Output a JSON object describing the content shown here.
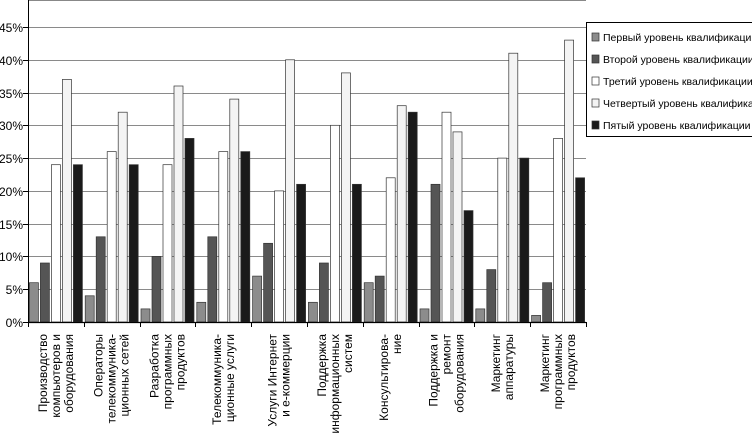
{
  "chart_data": {
    "type": "bar",
    "title": "",
    "xlabel": "",
    "ylabel": "",
    "ylim": [
      0,
      45
    ],
    "yticks": [
      "0%",
      "5%",
      "10%",
      "15%",
      "20%",
      "25%",
      "30%",
      "35%",
      "40%",
      "45%"
    ],
    "grid": true,
    "legend_position": "top-right",
    "categories": [
      "Производство компьютеров и оборудования",
      "Операторы телекоммуника-ционных сетей",
      "Разработка программных продуктов",
      "Телекоммуника-ционные услуги",
      "Услуги Интернет и е-коммерции",
      "Поддержка информационных систем",
      "Консультирова-ние",
      "Поддержка и ремонт оборудования",
      "Маркетинг аппаратуры",
      "Маркетинг программных продуктов"
    ],
    "series": [
      {
        "name": "Первый уровень квалификации",
        "color": "#8c8c8c",
        "values": [
          6,
          4,
          2,
          3,
          7,
          3,
          6,
          2,
          2,
          1
        ]
      },
      {
        "name": "Второй уровень квалификации",
        "color": "#555555",
        "values": [
          9,
          13,
          10,
          13,
          12,
          9,
          7,
          21,
          8,
          6
        ]
      },
      {
        "name": "Третий уровень квалификации",
        "color": "#ffffff",
        "values": [
          24,
          26,
          24,
          26,
          20,
          30,
          22,
          32,
          25,
          28
        ]
      },
      {
        "name": "Четвертый уровень квалификации",
        "color": "#f4f4f4",
        "values": [
          37,
          32,
          36,
          34,
          40,
          38,
          33,
          29,
          41,
          43
        ]
      },
      {
        "name": "Пятый уровень квалификации",
        "color": "#1a1a1a",
        "values": [
          24,
          24,
          28,
          26,
          21,
          21,
          32,
          17,
          25,
          22
        ]
      }
    ],
    "category_lines": [
      [
        "Производство",
        "компьютеров и",
        "оборудования"
      ],
      [
        "Операторы",
        "телекоммуника-",
        "ционных сетей"
      ],
      [
        "Разработка",
        "программных",
        "продуктов"
      ],
      [
        "Телекоммуника-",
        "ционные услуги"
      ],
      [
        "Услуги Интернет",
        "и е-коммерции"
      ],
      [
        "Поддержка",
        "информационных",
        "систем"
      ],
      [
        "Консультирова-",
        "ние"
      ],
      [
        "Поддержка и",
        "ремонт",
        "оборудования"
      ],
      [
        "Маркетинг",
        "аппаратуры"
      ],
      [
        "Маркетинг",
        "программных",
        "продуктов"
      ]
    ]
  }
}
